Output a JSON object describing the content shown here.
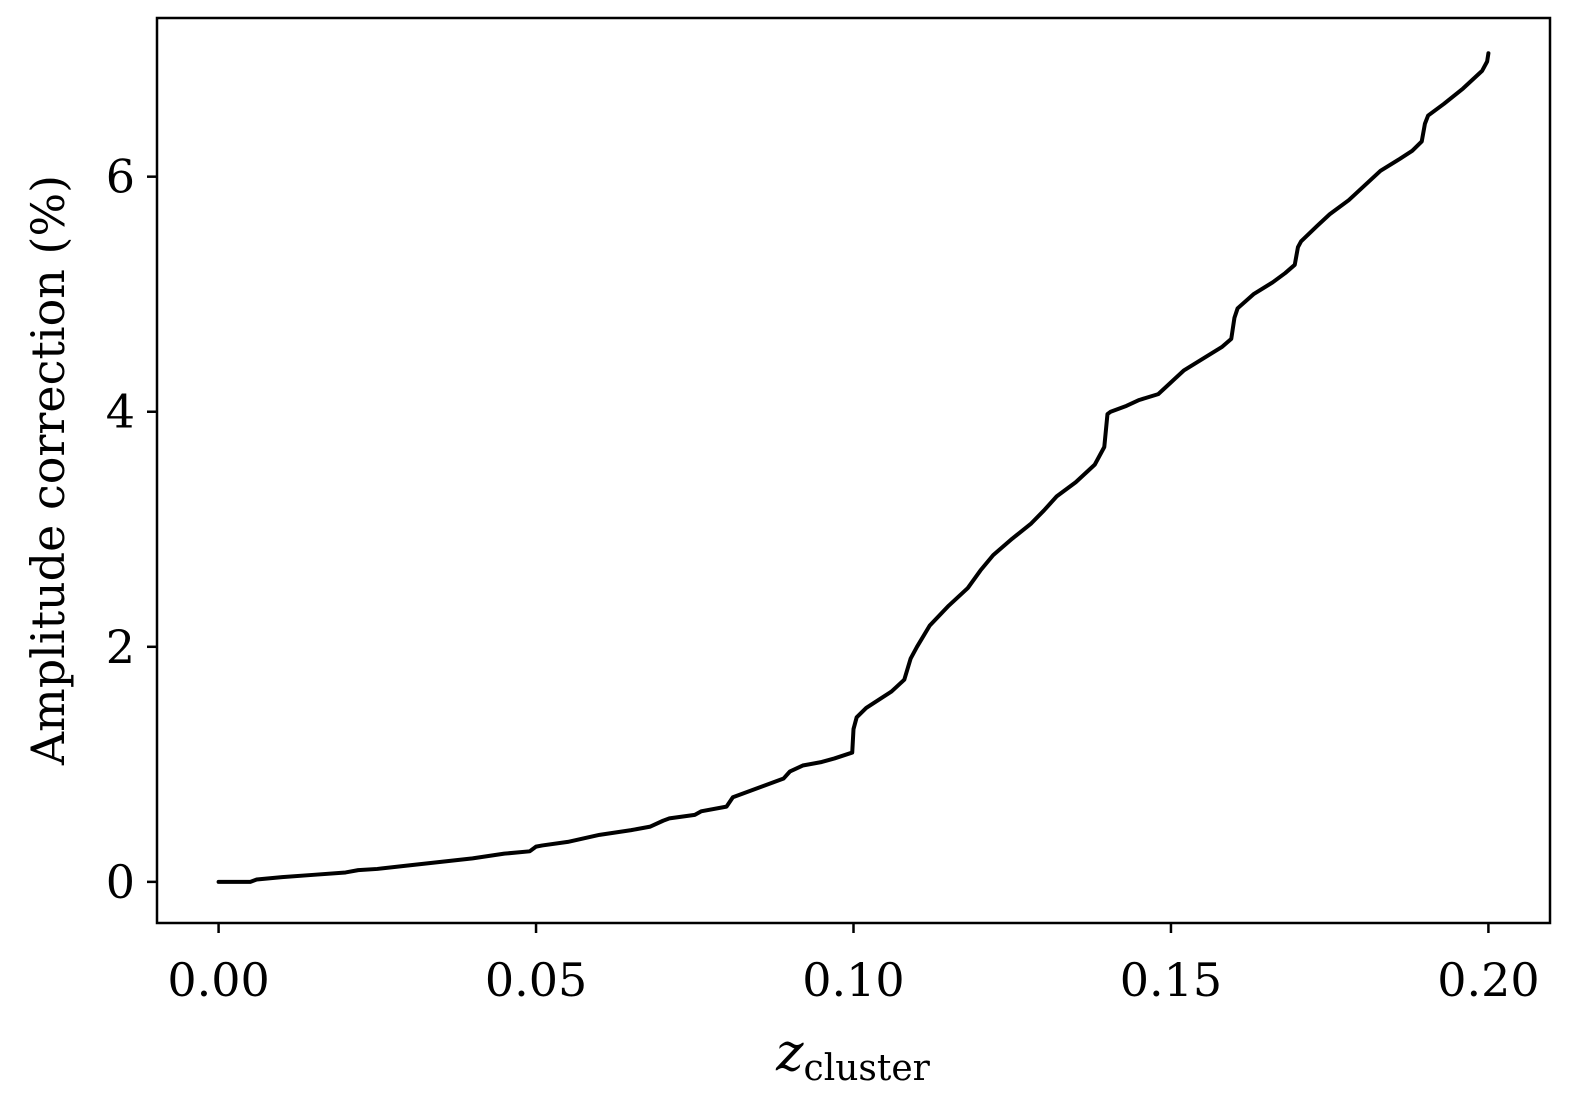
{
  "chart_data": {
    "type": "line",
    "title": "",
    "xlabel": {
      "main": "z",
      "subscript": "cluster"
    },
    "ylabel": "Amplitude correction (%)",
    "xlim": [
      -0.0097,
      0.2097
    ],
    "ylim": [
      -0.35,
      7.35
    ],
    "xticks": [
      0.0,
      0.05,
      0.1,
      0.15,
      0.2
    ],
    "xtick_labels": [
      "0.00",
      "0.05",
      "0.10",
      "0.15",
      "0.20"
    ],
    "yticks": [
      0,
      2,
      4,
      6
    ],
    "ytick_labels": [
      "0",
      "2",
      "4",
      "6"
    ],
    "grid": false,
    "legend": "none",
    "series": [
      {
        "color": "#000000",
        "x": [
          0.0,
          0.005,
          0.006,
          0.01,
          0.015,
          0.02,
          0.022,
          0.025,
          0.03,
          0.035,
          0.04,
          0.045,
          0.049,
          0.05,
          0.051,
          0.055,
          0.06,
          0.065,
          0.068,
          0.07,
          0.071,
          0.075,
          0.076,
          0.08,
          0.081,
          0.085,
          0.089,
          0.09,
          0.092,
          0.095,
          0.097,
          0.0998,
          0.1,
          0.1005,
          0.102,
          0.104,
          0.106,
          0.108,
          0.109,
          0.11,
          0.112,
          0.115,
          0.118,
          0.12,
          0.122,
          0.125,
          0.128,
          0.13,
          0.132,
          0.135,
          0.138,
          0.1395,
          0.14,
          0.1405,
          0.143,
          0.145,
          0.148,
          0.15,
          0.152,
          0.155,
          0.158,
          0.1595,
          0.16,
          0.1605,
          0.163,
          0.166,
          0.168,
          0.1695,
          0.17,
          0.1705,
          0.173,
          0.175,
          0.178,
          0.18,
          0.183,
          0.186,
          0.188,
          0.1895,
          0.19,
          0.1905,
          0.193,
          0.196,
          0.199,
          0.1998,
          0.2
        ],
        "y": [
          0.0,
          0.0,
          0.02,
          0.04,
          0.06,
          0.08,
          0.1,
          0.11,
          0.14,
          0.17,
          0.2,
          0.24,
          0.26,
          0.3,
          0.31,
          0.34,
          0.4,
          0.44,
          0.47,
          0.52,
          0.54,
          0.57,
          0.6,
          0.64,
          0.72,
          0.8,
          0.88,
          0.94,
          0.99,
          1.02,
          1.05,
          1.1,
          1.3,
          1.4,
          1.48,
          1.55,
          1.62,
          1.72,
          1.9,
          2.0,
          2.18,
          2.35,
          2.5,
          2.65,
          2.78,
          2.92,
          3.05,
          3.16,
          3.28,
          3.4,
          3.55,
          3.7,
          3.98,
          4.0,
          4.05,
          4.1,
          4.15,
          4.25,
          4.35,
          4.45,
          4.55,
          4.62,
          4.8,
          4.88,
          5.0,
          5.1,
          5.18,
          5.25,
          5.4,
          5.45,
          5.58,
          5.68,
          5.8,
          5.9,
          6.05,
          6.15,
          6.22,
          6.3,
          6.45,
          6.52,
          6.62,
          6.75,
          6.9,
          6.98,
          7.05
        ]
      }
    ]
  }
}
